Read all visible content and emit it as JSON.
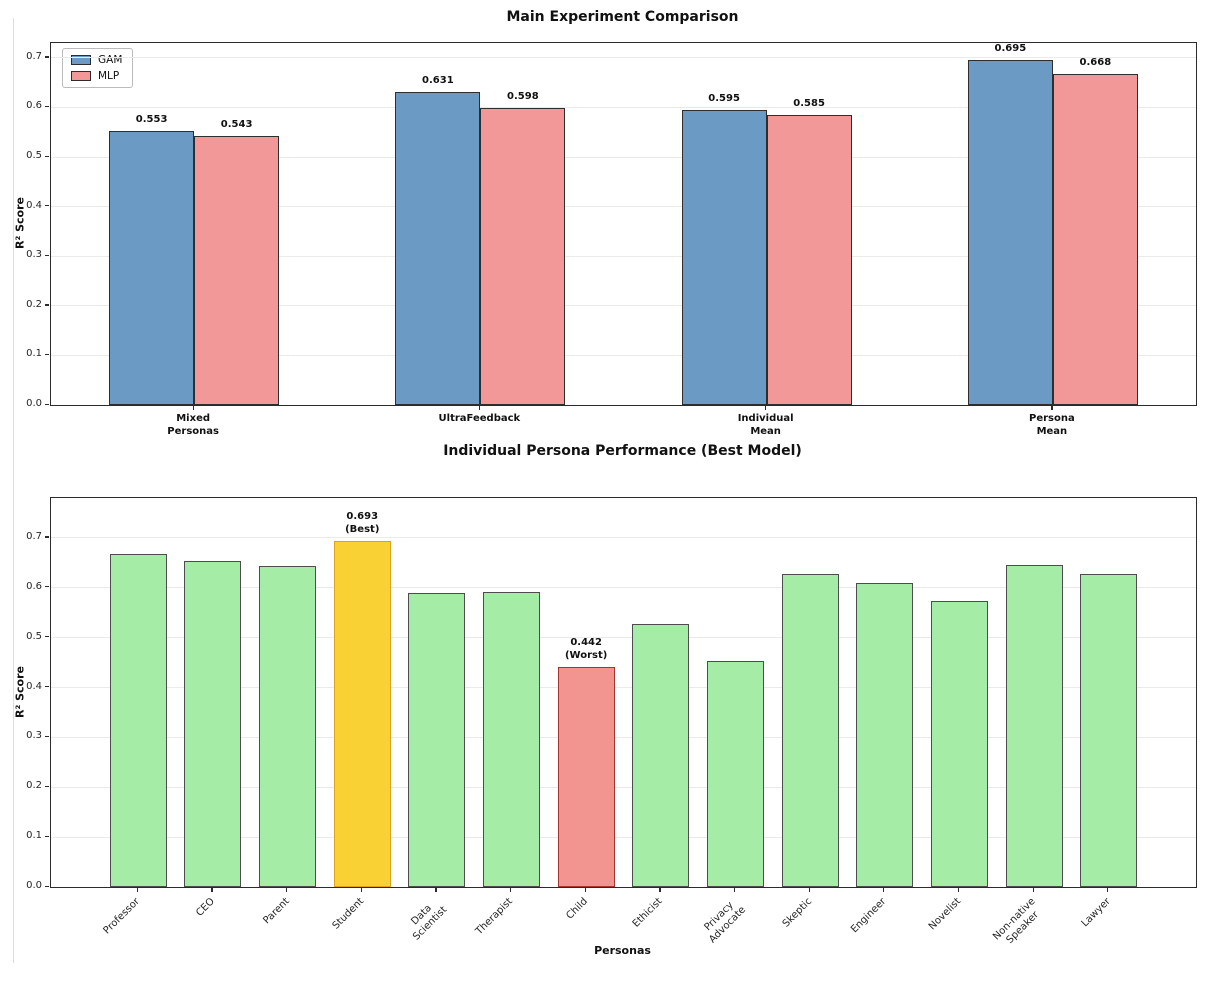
{
  "figure": {
    "background": "#ffffff"
  },
  "chart_data": [
    {
      "type": "bar",
      "title": "Main Experiment Comparison",
      "xlabel": "",
      "ylabel": "R² Score",
      "ylim": [
        0,
        0.73
      ],
      "yticks": [
        0.0,
        0.1,
        0.2,
        0.3,
        0.4,
        0.5,
        0.6,
        0.7
      ],
      "grid": "horizontal",
      "legend": {
        "position": "upper left",
        "entries": [
          {
            "label": "GAM",
            "color": "#6b9bc4",
            "edge": "#2d2d2d"
          },
          {
            "label": "MLP",
            "color": "#f39898",
            "edge": "#2d2d2d"
          }
        ]
      },
      "categories": [
        [
          "Mixed",
          "Personas"
        ],
        [
          "UltraFeedback"
        ],
        [
          "Individual",
          "Mean"
        ],
        [
          "Persona",
          "Mean"
        ]
      ],
      "series": [
        {
          "name": "GAM",
          "color": "#6b9bc4",
          "edge": "#2e2e2e",
          "values": [
            0.553,
            0.631,
            0.595,
            0.695
          ]
        },
        {
          "name": "MLP",
          "color": "#f39898",
          "edge": "#2e2e2e",
          "values": [
            0.543,
            0.598,
            0.585,
            0.668
          ]
        }
      ],
      "value_labels": [
        "0.553",
        "0.543",
        "0.631",
        "0.598",
        "0.595",
        "0.585",
        "0.695",
        "0.668"
      ]
    },
    {
      "type": "bar",
      "title": "Individual Persona Performance (Best Model)",
      "xlabel": "Personas",
      "ylabel": "R² Score",
      "ylim": [
        0,
        0.78
      ],
      "yticks": [
        0.0,
        0.1,
        0.2,
        0.3,
        0.4,
        0.5,
        0.6,
        0.7
      ],
      "grid": "horizontal",
      "categories": [
        [
          "Professor"
        ],
        [
          "CEO"
        ],
        [
          "Parent"
        ],
        [
          "Student"
        ],
        [
          "Data",
          "Scientist"
        ],
        [
          "Therapist"
        ],
        [
          "Child"
        ],
        [
          "Ethicist"
        ],
        [
          "Privacy",
          "Advocate"
        ],
        [
          "Skeptic"
        ],
        [
          "Engineer"
        ],
        [
          "Novelist"
        ],
        [
          "Non-native",
          "Speaker"
        ],
        [
          "Lawyer"
        ]
      ],
      "values": [
        0.667,
        0.654,
        0.643,
        0.693,
        0.589,
        0.591,
        0.442,
        0.528,
        0.453,
        0.628,
        0.61,
        0.573,
        0.645,
        0.627
      ],
      "colors": {
        "default": {
          "fill": "#a5eca7",
          "edge": "#4d4d4d"
        },
        "best": {
          "fill": "#f9d134",
          "edge": "#dca420"
        },
        "worst": {
          "fill": "#f2948f",
          "edge": "#a5342e"
        }
      },
      "best_index": 3,
      "worst_index": 6,
      "annotations": [
        {
          "index": 3,
          "lines": [
            "0.693",
            "(Best)"
          ],
          "kind": "best"
        },
        {
          "index": 6,
          "lines": [
            "0.442",
            "(Worst)"
          ],
          "kind": "worst"
        }
      ]
    }
  ]
}
